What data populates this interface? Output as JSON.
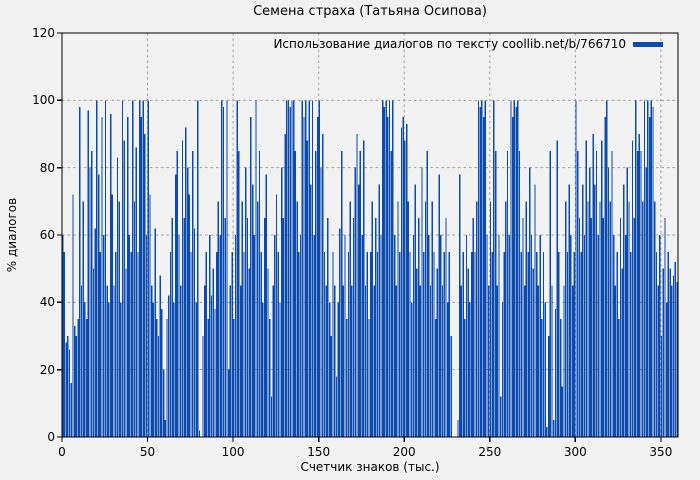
{
  "title": "Семена страха (Татьяна Осипова)",
  "legend": {
    "label": "Использование диалогов по тексту coollib.net/b/766710",
    "swatch_color": "#0b4bb0"
  },
  "axes": {
    "x": {
      "label": "Счетчик знаков (тыс.)",
      "ticks": [
        0,
        50,
        100,
        150,
        200,
        250,
        300,
        350
      ],
      "range": [
        0,
        360
      ]
    },
    "y": {
      "label": "% диалогов",
      "ticks": [
        0,
        20,
        40,
        60,
        80,
        100,
        120
      ],
      "range": [
        0,
        120
      ]
    }
  },
  "colors": {
    "background": "#f2f2f2",
    "bar": "#0b4bb0",
    "grid": "#9e9e9e",
    "border": "#000000",
    "text": "#000000"
  },
  "chart_data": {
    "type": "bar",
    "title": "Семена страха (Татьяна Осипова)",
    "xlabel": "Счетчик знаков (тыс.)",
    "ylabel": "% диалогов",
    "xlim": [
      0,
      360
    ],
    "ylim": [
      0,
      120
    ],
    "grid": true,
    "x_step": 1,
    "legend_position": "top-right",
    "series": [
      {
        "name": "Использование диалогов по тексту coollib.net/b/766710",
        "color": "#0b4bb0",
        "values": [
          60,
          55,
          28,
          30,
          26,
          16,
          72,
          33,
          30,
          35,
          98,
          45,
          70,
          40,
          35,
          97,
          80,
          85,
          50,
          62,
          100,
          78,
          55,
          95,
          60,
          100,
          45,
          40,
          96,
          72,
          45,
          55,
          83,
          70,
          40,
          100,
          88,
          50,
          95,
          60,
          55,
          100,
          70,
          86,
          55,
          100,
          95,
          100,
          90,
          60,
          100,
          72,
          45,
          40,
          62,
          35,
          30,
          48,
          38,
          20,
          5,
          35,
          42,
          55,
          65,
          40,
          78,
          85,
          60,
          45,
          88,
          65,
          92,
          80,
          72,
          55,
          85,
          62,
          40,
          100,
          2,
          0,
          30,
          45,
          55,
          35,
          60,
          42,
          50,
          38,
          55,
          70,
          60,
          100,
          98,
          65,
          100,
          20,
          45,
          55,
          35,
          60,
          100,
          85,
          45,
          70,
          55,
          80,
          65,
          50,
          95,
          75,
          60,
          100,
          70,
          85,
          55,
          40,
          65,
          78,
          50,
          35,
          12,
          45,
          60,
          72,
          55,
          40,
          80,
          65,
          90,
          100,
          100,
          98,
          100,
          100,
          85,
          70,
          55,
          60,
          100,
          95,
          100,
          88,
          100,
          75,
          100,
          60,
          85,
          95,
          100,
          80,
          90,
          55,
          45,
          65,
          40,
          30,
          55,
          45,
          18,
          40,
          62,
          85,
          45,
          60,
          35,
          55,
          70,
          45,
          65,
          80,
          90,
          75,
          85,
          60,
          88,
          45,
          55,
          35,
          55,
          70,
          45,
          65,
          55,
          75,
          60,
          100,
          98,
          100,
          95,
          100,
          85,
          100,
          60,
          45,
          70,
          55,
          92,
          95,
          88,
          93,
          70,
          55,
          40,
          60,
          75,
          50,
          65,
          45,
          80,
          55,
          70,
          85,
          60,
          45,
          70,
          55,
          35,
          50,
          78,
          60,
          45,
          55,
          65,
          40,
          55,
          30,
          0,
          0,
          0,
          5,
          78,
          45,
          55,
          35,
          60,
          50,
          40,
          55,
          65,
          55,
          70,
          100,
          98,
          100,
          95,
          100,
          60,
          45,
          70,
          55,
          100,
          85,
          45,
          60,
          12,
          40,
          55,
          70,
          85,
          60,
          100,
          95,
          100,
          98,
          100,
          85,
          55,
          65,
          45,
          70,
          55,
          80,
          60,
          50,
          75,
          55,
          45,
          60,
          35,
          55,
          40,
          3,
          30,
          85,
          45,
          5,
          38,
          88,
          55,
          35,
          15,
          45,
          70,
          55,
          75,
          60,
          45,
          55,
          100,
          85,
          65,
          55,
          75,
          60,
          88,
          70,
          80,
          65,
          90,
          75,
          85,
          60,
          70,
          88,
          65,
          95,
          100,
          80,
          70,
          85,
          60,
          45,
          55,
          35,
          65,
          50,
          75,
          60,
          80,
          70,
          55,
          88,
          65,
          100,
          85,
          90,
          85,
          70,
          100,
          80,
          100,
          95,
          100,
          98,
          70,
          55,
          45,
          60,
          30,
          50,
          65,
          40,
          55,
          50,
          45,
          48,
          52,
          46
        ]
      }
    ]
  }
}
